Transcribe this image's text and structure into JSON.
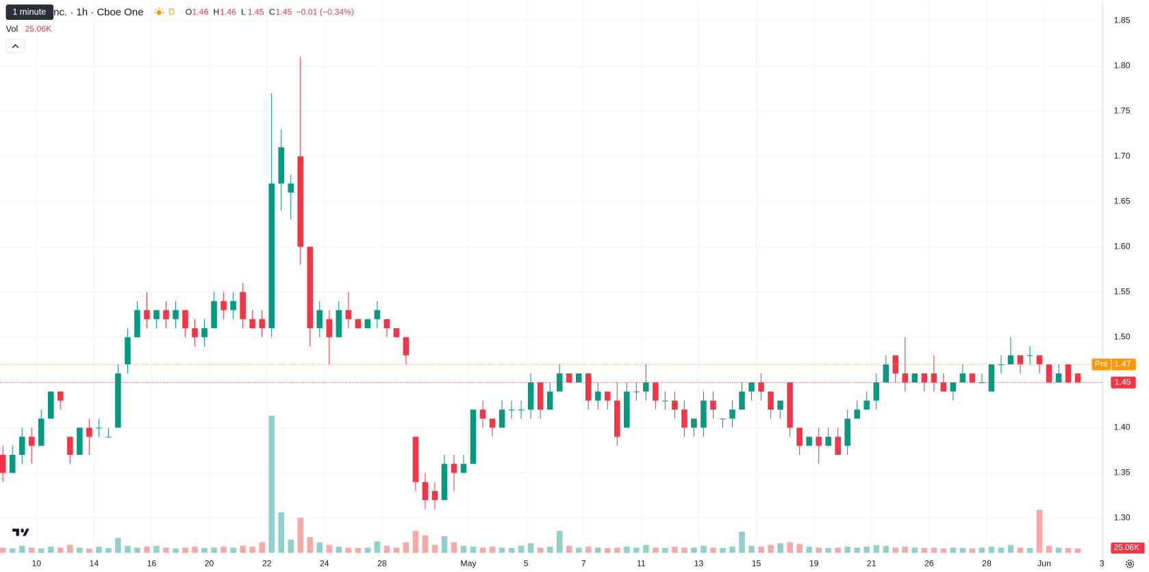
{
  "header": {
    "tooltip": "1 minute",
    "title": "nc. · 1h · Cboe One",
    "interval_badge": "D",
    "ohlc": [
      {
        "label": "O",
        "value": 1.46
      },
      {
        "label": "H",
        "value": 1.46
      },
      {
        "label": "L",
        "value": 1.45
      },
      {
        "label": "C",
        "value": 1.45
      }
    ],
    "change": "−0.01 (−0.34%)",
    "vol_label": "Vol",
    "vol_value": "25.06K"
  },
  "chart_data": {
    "type": "candlestick",
    "open": [
      1.37,
      1.35,
      1.37,
      1.39,
      1.38,
      1.41,
      1.44,
      1.39,
      1.37,
      1.4,
      1.4,
      1.39,
      1.4,
      1.47,
      1.5,
      1.53,
      1.52,
      1.53,
      1.52,
      1.53,
      1.51,
      1.5,
      1.51,
      1.54,
      1.53,
      1.55,
      1.52,
      1.52,
      1.51,
      1.67,
      1.66,
      1.7,
      1.6,
      1.51,
      1.52,
      1.5,
      1.53,
      1.52,
      1.51,
      1.52,
      1.52,
      1.51,
      1.5,
      1.39,
      1.34,
      1.33,
      1.32,
      1.36,
      1.35,
      1.36,
      1.42,
      1.41,
      1.4,
      1.42,
      1.42,
      1.42,
      1.45,
      1.42,
      1.44,
      1.46,
      1.45,
      1.46,
      1.43,
      1.44,
      1.43,
      1.4,
      1.44,
      1.44,
      1.45,
      1.43,
      1.43,
      1.42,
      1.4,
      1.4,
      1.43,
      1.41,
      1.41,
      1.42,
      1.44,
      1.45,
      1.44,
      1.42,
      1.45,
      1.4,
      1.38,
      1.39,
      1.38,
      1.39,
      1.38,
      1.41,
      1.42,
      1.43,
      1.45,
      1.48,
      1.46,
      1.45,
      1.46,
      1.46,
      1.45,
      1.44,
      1.45,
      1.46,
      1.45,
      1.44,
      1.47,
      1.47,
      1.48,
      1.48,
      1.48,
      1.47,
      1.45,
      1.47,
      1.46
    ],
    "high": [
      1.38,
      1.38,
      1.4,
      1.4,
      1.42,
      1.44,
      1.44,
      1.39,
      1.4,
      1.41,
      1.41,
      1.4,
      1.47,
      1.51,
      1.54,
      1.55,
      1.53,
      1.54,
      1.54,
      1.53,
      1.52,
      1.52,
      1.55,
      1.55,
      1.55,
      1.56,
      1.53,
      1.53,
      1.77,
      1.73,
      1.68,
      1.81,
      1.6,
      1.54,
      1.53,
      1.54,
      1.55,
      1.52,
      1.52,
      1.54,
      1.52,
      1.51,
      1.5,
      1.39,
      1.35,
      1.34,
      1.37,
      1.37,
      1.37,
      1.42,
      1.43,
      1.41,
      1.43,
      1.43,
      1.43,
      1.46,
      1.45,
      1.45,
      1.47,
      1.46,
      1.46,
      1.46,
      1.45,
      1.44,
      1.45,
      1.45,
      1.45,
      1.47,
      1.45,
      1.44,
      1.44,
      1.43,
      1.41,
      1.44,
      1.44,
      1.41,
      1.43,
      1.45,
      1.45,
      1.46,
      1.44,
      1.43,
      1.45,
      1.4,
      1.39,
      1.4,
      1.4,
      1.4,
      1.42,
      1.43,
      1.44,
      1.46,
      1.48,
      1.48,
      1.5,
      1.46,
      1.46,
      1.48,
      1.46,
      1.45,
      1.47,
      1.46,
      1.46,
      1.47,
      1.48,
      1.5,
      1.48,
      1.49,
      1.48,
      1.47,
      1.47,
      1.47,
      1.46
    ],
    "low": [
      1.34,
      1.35,
      1.36,
      1.36,
      1.38,
      1.41,
      1.42,
      1.36,
      1.37,
      1.37,
      1.39,
      1.39,
      1.4,
      1.46,
      1.5,
      1.51,
      1.51,
      1.51,
      1.51,
      1.5,
      1.49,
      1.49,
      1.51,
      1.52,
      1.52,
      1.51,
      1.51,
      1.5,
      1.5,
      1.64,
      1.63,
      1.58,
      1.49,
      1.5,
      1.47,
      1.5,
      1.51,
      1.51,
      1.51,
      1.51,
      1.5,
      1.5,
      1.47,
      1.33,
      1.31,
      1.31,
      1.32,
      1.33,
      1.35,
      1.36,
      1.4,
      1.39,
      1.4,
      1.41,
      1.41,
      1.41,
      1.41,
      1.42,
      1.44,
      1.45,
      1.45,
      1.42,
      1.42,
      1.42,
      1.38,
      1.4,
      1.43,
      1.43,
      1.42,
      1.42,
      1.41,
      1.39,
      1.39,
      1.39,
      1.41,
      1.4,
      1.4,
      1.42,
      1.43,
      1.43,
      1.41,
      1.41,
      1.39,
      1.37,
      1.38,
      1.36,
      1.38,
      1.37,
      1.37,
      1.41,
      1.42,
      1.42,
      1.45,
      1.45,
      1.44,
      1.45,
      1.44,
      1.44,
      1.44,
      1.43,
      1.45,
      1.45,
      1.45,
      1.44,
      1.46,
      1.47,
      1.46,
      1.47,
      1.46,
      1.45,
      1.45,
      1.45,
      1.45
    ],
    "close": [
      1.35,
      1.37,
      1.39,
      1.38,
      1.41,
      1.44,
      1.43,
      1.37,
      1.4,
      1.39,
      1.4,
      1.39,
      1.46,
      1.5,
      1.53,
      1.52,
      1.53,
      1.52,
      1.53,
      1.51,
      1.5,
      1.51,
      1.54,
      1.53,
      1.54,
      1.52,
      1.51,
      1.51,
      1.67,
      1.71,
      1.67,
      1.6,
      1.51,
      1.53,
      1.5,
      1.53,
      1.52,
      1.51,
      1.52,
      1.53,
      1.51,
      1.5,
      1.48,
      1.34,
      1.32,
      1.32,
      1.36,
      1.35,
      1.36,
      1.42,
      1.41,
      1.4,
      1.42,
      1.42,
      1.42,
      1.45,
      1.42,
      1.44,
      1.46,
      1.45,
      1.46,
      1.43,
      1.44,
      1.43,
      1.39,
      1.44,
      1.44,
      1.45,
      1.43,
      1.43,
      1.42,
      1.4,
      1.41,
      1.43,
      1.42,
      1.41,
      1.42,
      1.44,
      1.45,
      1.44,
      1.42,
      1.43,
      1.4,
      1.38,
      1.39,
      1.38,
      1.39,
      1.37,
      1.41,
      1.42,
      1.43,
      1.45,
      1.47,
      1.46,
      1.45,
      1.46,
      1.45,
      1.45,
      1.44,
      1.45,
      1.46,
      1.45,
      1.45,
      1.47,
      1.47,
      1.48,
      1.47,
      1.48,
      1.47,
      1.45,
      1.46,
      1.45,
      1.45
    ],
    "volume": [
      30,
      25,
      40,
      30,
      25,
      35,
      30,
      45,
      30,
      25,
      35,
      28,
      85,
      40,
      30,
      35,
      40,
      30,
      25,
      30,
      35,
      28,
      30,
      35,
      30,
      40,
      35,
      60,
      780,
      230,
      75,
      200,
      90,
      60,
      45,
      35,
      30,
      28,
      30,
      65,
      40,
      30,
      60,
      125,
      100,
      45,
      95,
      60,
      40,
      35,
      30,
      35,
      30,
      28,
      40,
      55,
      30,
      35,
      125,
      40,
      30,
      35,
      30,
      28,
      30,
      35,
      30,
      45,
      30,
      28,
      35,
      30,
      30,
      40,
      30,
      28,
      35,
      120,
      40,
      35,
      45,
      55,
      60,
      50,
      35,
      30,
      28,
      30,
      35,
      30,
      35,
      45,
      40,
      30,
      35,
      30,
      28,
      30,
      25,
      30,
      28,
      25,
      30,
      35,
      30,
      45,
      30,
      28,
      245,
      40,
      30,
      28,
      25.06
    ],
    "xlim": [
      -0.3,
      114.6
    ],
    "xticks": [
      {
        "value": 3.5,
        "label": "10"
      },
      {
        "value": 9.5,
        "label": "14"
      },
      {
        "value": 15.5,
        "label": "16"
      },
      {
        "value": 21.5,
        "label": "20"
      },
      {
        "value": 27.5,
        "label": "22"
      },
      {
        "value": 33.5,
        "label": "24"
      },
      {
        "value": 39.5,
        "label": "28"
      },
      {
        "value": 48.5,
        "label": "May"
      },
      {
        "value": 54.5,
        "label": "5"
      },
      {
        "value": 60.5,
        "label": "7"
      },
      {
        "value": 66.5,
        "label": "11"
      },
      {
        "value": 72.5,
        "label": "13"
      },
      {
        "value": 78.5,
        "label": "15"
      },
      {
        "value": 84.5,
        "label": "19"
      },
      {
        "value": 90.5,
        "label": "21"
      },
      {
        "value": 96.5,
        "label": "26"
      },
      {
        "value": 102.5,
        "label": "28"
      },
      {
        "value": 108.5,
        "label": "Jun"
      },
      {
        "value": 114.5,
        "label": "3"
      }
    ],
    "ylim": [
      1.2576,
      1.8711
    ],
    "yticks": [
      {
        "value": 1.3,
        "label": "1.30"
      },
      1.35,
      {
        "value": 1.4,
        "label": "1.40"
      },
      1.45,
      {
        "value": 1.5,
        "label": "1.50"
      },
      1.55,
      {
        "value": 1.6,
        "label": "1.60"
      },
      1.65,
      {
        "value": 1.7,
        "label": "1.70"
      },
      1.75,
      {
        "value": 1.8,
        "label": "1.80"
      },
      1.85
    ],
    "volume_ylim": [
      0,
      1000
    ],
    "last_price": 1.45,
    "premarket": {
      "label": "Pre",
      "value": 1.47
    },
    "grid": true,
    "up_color": "#089981",
    "down_color": "#f23645",
    "volume_up_color": "#92d1cb",
    "volume_down_color": "#f7a9a7",
    "premarket_color": "#ff9800"
  }
}
